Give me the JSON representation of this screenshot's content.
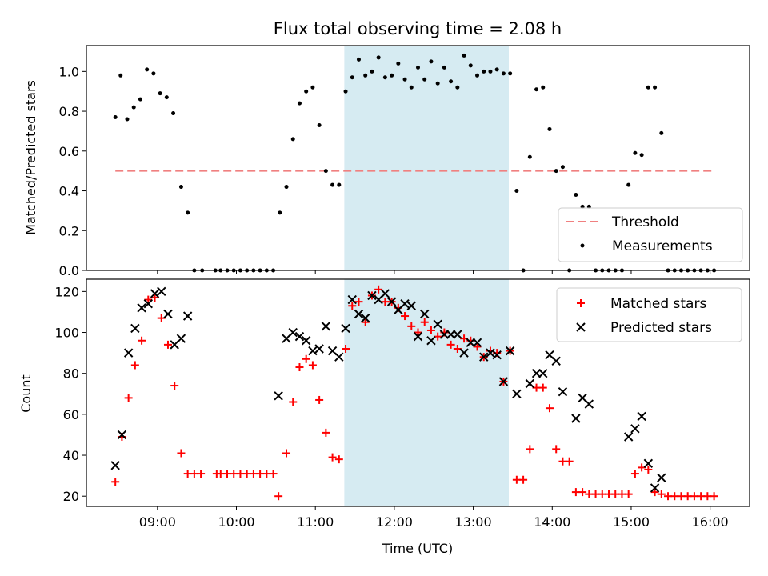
{
  "title": "Flux total observing time = 2.08 h",
  "xlabel": "Time (UTC)",
  "x_ticks": [
    "09:00",
    "10:00",
    "11:00",
    "12:00",
    "13:00",
    "14:00",
    "15:00",
    "16:00"
  ],
  "colors": {
    "threshold": "#f08080",
    "measurements": "#000000",
    "matched": "#ff0000",
    "predicted": "#000000",
    "highlight": "#add8e6"
  },
  "chart_data": [
    {
      "type": "scatter",
      "ylabel": "Matched/Predicted stars",
      "xlim": [
        "08:06",
        "16:30"
      ],
      "ylim": [
        0,
        1.13
      ],
      "y_ticks": [
        "0.0",
        "0.2",
        "0.4",
        "0.6",
        "0.8",
        "1.0"
      ],
      "highlight_span": [
        "11:22",
        "13:27"
      ],
      "legend_position": "lower right",
      "threshold": {
        "name": "Threshold",
        "value": 0.5,
        "x_range": [
          "08:28",
          "16:03"
        ]
      },
      "series": [
        {
          "name": "Measurements",
          "marker": "dot",
          "points": [
            [
              "08:28",
              0.77
            ],
            [
              "08:32",
              0.98
            ],
            [
              "08:37",
              0.76
            ],
            [
              "08:42",
              0.82
            ],
            [
              "08:47",
              0.86
            ],
            [
              "08:52",
              1.01
            ],
            [
              "08:57",
              0.99
            ],
            [
              "09:02",
              0.89
            ],
            [
              "09:07",
              0.87
            ],
            [
              "09:12",
              0.79
            ],
            [
              "09:18",
              0.42
            ],
            [
              "09:23",
              0.29
            ],
            [
              "09:28",
              0.0
            ],
            [
              "09:34",
              0.0
            ],
            [
              "09:44",
              0.0
            ],
            [
              "09:48",
              0.0
            ],
            [
              "09:53",
              0.0
            ],
            [
              "09:58",
              0.0
            ],
            [
              "10:03",
              0.0
            ],
            [
              "10:08",
              0.0
            ],
            [
              "10:13",
              0.0
            ],
            [
              "10:18",
              0.0
            ],
            [
              "10:23",
              0.0
            ],
            [
              "10:28",
              0.0
            ],
            [
              "10:33",
              0.29
            ],
            [
              "10:38",
              0.42
            ],
            [
              "10:43",
              0.66
            ],
            [
              "10:48",
              0.84
            ],
            [
              "10:53",
              0.9
            ],
            [
              "10:58",
              0.92
            ],
            [
              "11:03",
              0.73
            ],
            [
              "11:08",
              0.5
            ],
            [
              "11:13",
              0.43
            ],
            [
              "11:18",
              0.43
            ],
            [
              "11:23",
              0.9
            ],
            [
              "11:28",
              0.97
            ],
            [
              "11:33",
              1.06
            ],
            [
              "11:38",
              0.98
            ],
            [
              "11:43",
              1.0
            ],
            [
              "11:48",
              1.07
            ],
            [
              "11:53",
              0.97
            ],
            [
              "11:58",
              0.98
            ],
            [
              "12:03",
              1.04
            ],
            [
              "12:08",
              0.96
            ],
            [
              "12:13",
              0.92
            ],
            [
              "12:18",
              1.02
            ],
            [
              "12:23",
              0.96
            ],
            [
              "12:28",
              1.05
            ],
            [
              "12:33",
              0.94
            ],
            [
              "12:38",
              1.02
            ],
            [
              "12:43",
              0.95
            ],
            [
              "12:48",
              0.92
            ],
            [
              "12:53",
              1.08
            ],
            [
              "12:58",
              1.03
            ],
            [
              "13:03",
              0.98
            ],
            [
              "13:08",
              1.0
            ],
            [
              "13:13",
              1.0
            ],
            [
              "13:18",
              1.01
            ],
            [
              "13:23",
              0.99
            ],
            [
              "13:28",
              0.99
            ],
            [
              "13:33",
              0.4
            ],
            [
              "13:38",
              0.0
            ],
            [
              "13:43",
              0.57
            ],
            [
              "13:48",
              0.91
            ],
            [
              "13:53",
              0.92
            ],
            [
              "13:58",
              0.71
            ],
            [
              "14:03",
              0.5
            ],
            [
              "14:08",
              0.52
            ],
            [
              "14:13",
              0.0
            ],
            [
              "14:18",
              0.38
            ],
            [
              "14:23",
              0.32
            ],
            [
              "14:28",
              0.32
            ],
            [
              "14:33",
              0.0
            ],
            [
              "14:38",
              0.0
            ],
            [
              "14:43",
              0.0
            ],
            [
              "14:48",
              0.0
            ],
            [
              "14:53",
              0.0
            ],
            [
              "14:58",
              0.43
            ],
            [
              "15:03",
              0.59
            ],
            [
              "15:08",
              0.58
            ],
            [
              "15:13",
              0.92
            ],
            [
              "15:18",
              0.92
            ],
            [
              "15:23",
              0.69
            ],
            [
              "15:28",
              0.0
            ],
            [
              "15:33",
              0.0
            ],
            [
              "15:38",
              0.0
            ],
            [
              "15:43",
              0.0
            ],
            [
              "15:48",
              0.0
            ],
            [
              "15:53",
              0.0
            ],
            [
              "15:58",
              0.0
            ],
            [
              "16:03",
              0.0
            ]
          ]
        }
      ]
    },
    {
      "type": "scatter",
      "ylabel": "Count",
      "xlim": [
        "08:06",
        "16:30"
      ],
      "ylim": [
        15,
        126
      ],
      "y_ticks": [
        "20",
        "40",
        "60",
        "80",
        "100",
        "120"
      ],
      "highlight_span": [
        "11:22",
        "13:27"
      ],
      "legend_position": "upper right",
      "series": [
        {
          "name": "Matched stars",
          "marker": "plus",
          "points": [
            [
              "08:28",
              27
            ],
            [
              "08:33",
              49
            ],
            [
              "08:38",
              68
            ],
            [
              "08:43",
              84
            ],
            [
              "08:48",
              96
            ],
            [
              "08:53",
              116
            ],
            [
              "08:58",
              117
            ],
            [
              "09:03",
              107
            ],
            [
              "09:08",
              94
            ],
            [
              "09:13",
              74
            ],
            [
              "09:18",
              41
            ],
            [
              "09:23",
              31
            ],
            [
              "09:28",
              31
            ],
            [
              "09:33",
              31
            ],
            [
              "09:45",
              31
            ],
            [
              "09:48",
              31
            ],
            [
              "09:53",
              31
            ],
            [
              "09:58",
              31
            ],
            [
              "10:03",
              31
            ],
            [
              "10:08",
              31
            ],
            [
              "10:13",
              31
            ],
            [
              "10:18",
              31
            ],
            [
              "10:23",
              31
            ],
            [
              "10:28",
              31
            ],
            [
              "10:32",
              20
            ],
            [
              "10:38",
              41
            ],
            [
              "10:43",
              66
            ],
            [
              "10:48",
              83
            ],
            [
              "10:53",
              87
            ],
            [
              "10:58",
              84
            ],
            [
              "11:03",
              67
            ],
            [
              "11:08",
              51
            ],
            [
              "11:13",
              39
            ],
            [
              "11:18",
              38
            ],
            [
              "11:23",
              92
            ],
            [
              "11:28",
              113
            ],
            [
              "11:33",
              115
            ],
            [
              "11:38",
              105
            ],
            [
              "11:43",
              118
            ],
            [
              "11:48",
              121
            ],
            [
              "11:53",
              115
            ],
            [
              "11:58",
              115
            ],
            [
              "12:03",
              112
            ],
            [
              "12:08",
              108
            ],
            [
              "12:13",
              103
            ],
            [
              "12:18",
              100
            ],
            [
              "12:23",
              105
            ],
            [
              "12:28",
              101
            ],
            [
              "12:33",
              98
            ],
            [
              "12:38",
              100
            ],
            [
              "12:43",
              94
            ],
            [
              "12:48",
              92
            ],
            [
              "12:53",
              97
            ],
            [
              "12:58",
              96
            ],
            [
              "13:03",
              93
            ],
            [
              "13:08",
              88
            ],
            [
              "13:13",
              91
            ],
            [
              "13:18",
              90
            ],
            [
              "13:23",
              76
            ],
            [
              "13:28",
              91
            ],
            [
              "13:33",
              28
            ],
            [
              "13:38",
              28
            ],
            [
              "13:43",
              43
            ],
            [
              "13:48",
              73
            ],
            [
              "13:53",
              73
            ],
            [
              "13:58",
              63
            ],
            [
              "14:03",
              43
            ],
            [
              "14:08",
              37
            ],
            [
              "14:13",
              37
            ],
            [
              "14:18",
              22
            ],
            [
              "14:23",
              22
            ],
            [
              "14:28",
              21
            ],
            [
              "14:33",
              21
            ],
            [
              "14:38",
              21
            ],
            [
              "14:43",
              21
            ],
            [
              "14:48",
              21
            ],
            [
              "14:53",
              21
            ],
            [
              "14:58",
              21
            ],
            [
              "15:03",
              31
            ],
            [
              "15:08",
              34
            ],
            [
              "15:13",
              33
            ],
            [
              "15:18",
              22
            ],
            [
              "15:23",
              21
            ],
            [
              "15:28",
              20
            ],
            [
              "15:33",
              20
            ],
            [
              "15:38",
              20
            ],
            [
              "15:43",
              20
            ],
            [
              "15:48",
              20
            ],
            [
              "15:53",
              20
            ],
            [
              "15:58",
              20
            ],
            [
              "16:03",
              20
            ]
          ]
        },
        {
          "name": "Predicted stars",
          "marker": "x",
          "points": [
            [
              "08:28",
              35
            ],
            [
              "08:33",
              50
            ],
            [
              "08:38",
              90
            ],
            [
              "08:43",
              102
            ],
            [
              "08:48",
              112
            ],
            [
              "08:53",
              114
            ],
            [
              "08:58",
              119
            ],
            [
              "09:03",
              120
            ],
            [
              "09:08",
              109
            ],
            [
              "09:13",
              94
            ],
            [
              "09:18",
              97
            ],
            [
              "09:23",
              108
            ],
            [
              "10:32",
              69
            ],
            [
              "10:38",
              97
            ],
            [
              "10:43",
              100
            ],
            [
              "10:48",
              98
            ],
            [
              "10:53",
              96
            ],
            [
              "10:58",
              91
            ],
            [
              "11:03",
              92
            ],
            [
              "11:08",
              103
            ],
            [
              "11:13",
              91
            ],
            [
              "11:18",
              88
            ],
            [
              "11:23",
              102
            ],
            [
              "11:28",
              116
            ],
            [
              "11:33",
              109
            ],
            [
              "11:38",
              107
            ],
            [
              "11:43",
              118
            ],
            [
              "11:48",
              116
            ],
            [
              "11:53",
              119
            ],
            [
              "11:58",
              115
            ],
            [
              "12:03",
              111
            ],
            [
              "12:08",
              114
            ],
            [
              "12:13",
              113
            ],
            [
              "12:18",
              98
            ],
            [
              "12:23",
              109
            ],
            [
              "12:28",
              96
            ],
            [
              "12:33",
              104
            ],
            [
              "12:38",
              99
            ],
            [
              "12:43",
              99
            ],
            [
              "12:48",
              99
            ],
            [
              "12:53",
              90
            ],
            [
              "12:58",
              95
            ],
            [
              "13:03",
              95
            ],
            [
              "13:08",
              88
            ],
            [
              "13:13",
              90
            ],
            [
              "13:18",
              89
            ],
            [
              "13:23",
              76
            ],
            [
              "13:28",
              91
            ],
            [
              "13:33",
              70
            ],
            [
              "13:43",
              75
            ],
            [
              "13:48",
              80
            ],
            [
              "13:53",
              80
            ],
            [
              "13:58",
              89
            ],
            [
              "14:03",
              86
            ],
            [
              "14:08",
              71
            ],
            [
              "14:18",
              58
            ],
            [
              "14:23",
              68
            ],
            [
              "14:28",
              65
            ],
            [
              "14:58",
              49
            ],
            [
              "15:03",
              53
            ],
            [
              "15:08",
              59
            ],
            [
              "15:13",
              36
            ],
            [
              "15:18",
              24
            ],
            [
              "15:23",
              29
            ]
          ]
        }
      ]
    }
  ]
}
